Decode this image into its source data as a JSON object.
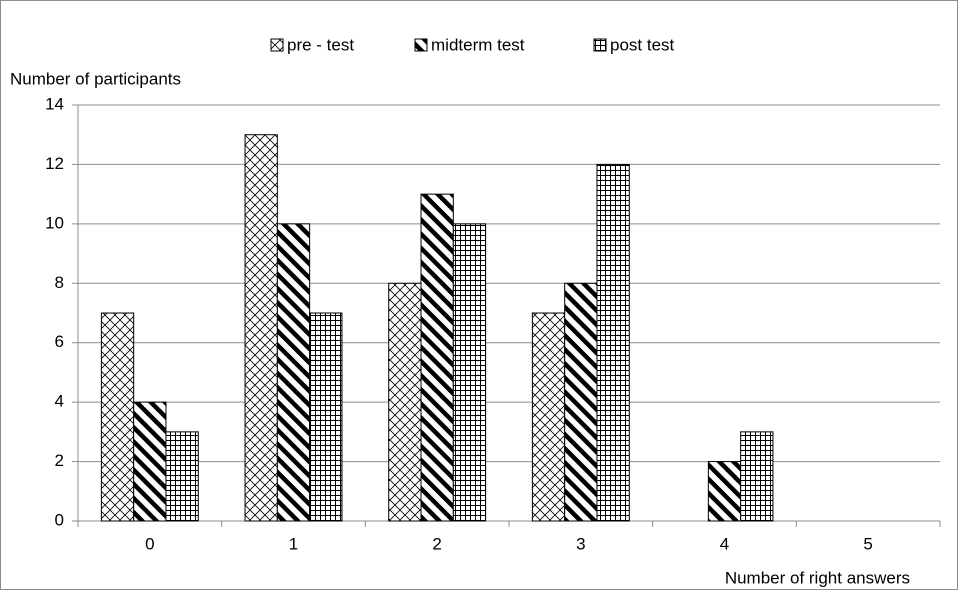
{
  "chart_data": {
    "type": "bar",
    "y_label": "Number of participants",
    "x_label": "Number of right answers",
    "categories": [
      "0",
      "1",
      "2",
      "3",
      "4",
      "5"
    ],
    "series": [
      {
        "name": "pre - test",
        "color": "#000000",
        "pattern": "crosshatch",
        "values": [
          7,
          13,
          8,
          7,
          0,
          0
        ]
      },
      {
        "name": "midterm test",
        "color": "#000000",
        "pattern": "diagonal",
        "values": [
          4,
          10,
          11,
          8,
          2,
          0
        ]
      },
      {
        "name": "post test",
        "color": "#000000",
        "pattern": "grid",
        "values": [
          3,
          7,
          10,
          12,
          3,
          0
        ]
      }
    ],
    "ylim": [
      0,
      14
    ],
    "yticks": [
      0,
      2,
      4,
      6,
      8,
      10,
      12,
      14
    ],
    "grid": true,
    "legend": "top"
  }
}
